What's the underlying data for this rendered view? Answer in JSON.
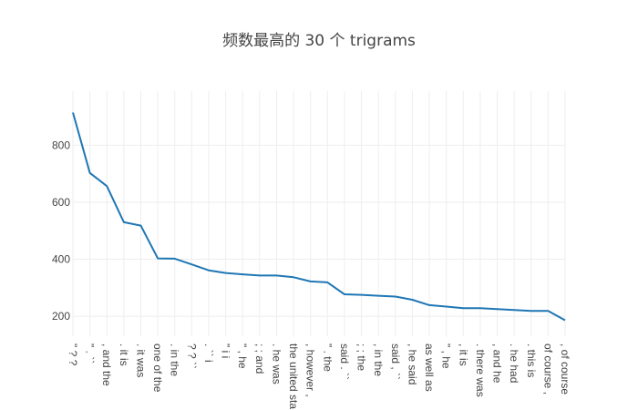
{
  "chart_data": {
    "type": "line",
    "title": "频数最高的 30 个 trigrams",
    "xlabel": "",
    "ylabel": "",
    "categories": [
      "\" ? ?",
      "\" . ``",
      ", and the",
      ". it is",
      ". it was",
      "one of the",
      ". in the",
      "? ? ``",
      ". `` i",
      "\" i i",
      "\" , he",
      "; ; and",
      ". he was",
      "the united sta",
      ", however ,",
      "\" . the",
      "said . ``",
      "; ; the",
      ", in the",
      "said , ``",
      ", he said",
      "as well as",
      "\" , he",
      ", it is",
      ". there was",
      ", and he",
      ". he had",
      ". this is",
      "of course ,",
      ", of course"
    ],
    "values": [
      915,
      703,
      657,
      530,
      518,
      403,
      402,
      382,
      361,
      352,
      347,
      343,
      343,
      337,
      322,
      319,
      277,
      275,
      272,
      269,
      258,
      239,
      234,
      228,
      228,
      225,
      222,
      219,
      219,
      186
    ],
    "ylim": [
      130,
      990
    ],
    "yticks": [
      200,
      400,
      600,
      800
    ],
    "grid": true,
    "line_color": "#1f77b4",
    "grid_color": "#eeeeee"
  }
}
